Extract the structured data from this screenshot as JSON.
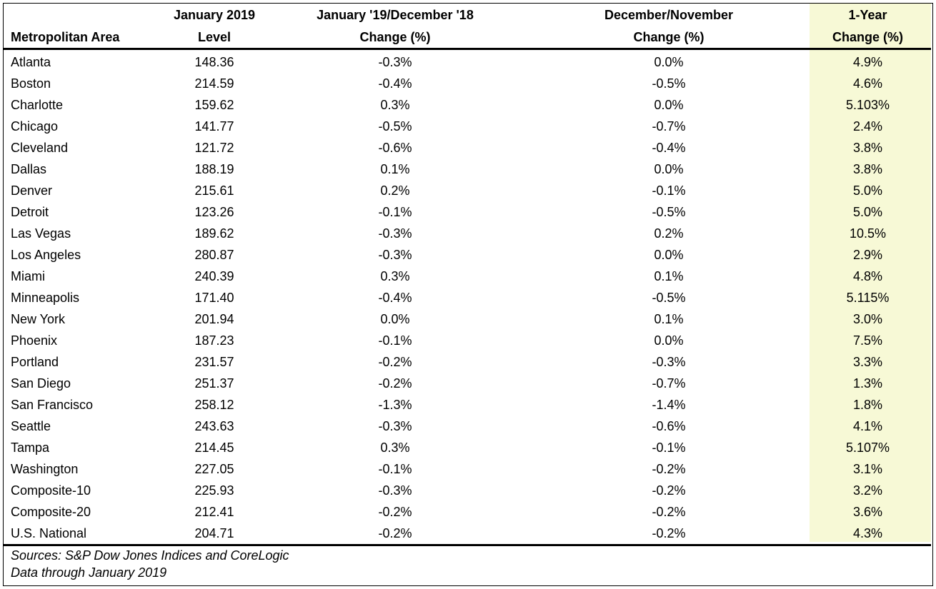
{
  "header": {
    "row1": [
      "",
      "January 2019",
      "January '19/December '18",
      "December/November",
      "1-Year"
    ],
    "row2": [
      "Metropolitan Area",
      "Level",
      "Change (%)",
      "Change (%)",
      "Change (%)"
    ]
  },
  "rows": [
    [
      "Atlanta",
      "148.36",
      "-0.3%",
      "0.0%",
      "4.9%"
    ],
    [
      "Boston",
      "214.59",
      "-0.4%",
      "-0.5%",
      "4.6%"
    ],
    [
      "Charlotte",
      "159.62",
      "0.3%",
      "0.0%",
      "5.103%"
    ],
    [
      "Chicago",
      "141.77",
      "-0.5%",
      "-0.7%",
      "2.4%"
    ],
    [
      "Cleveland",
      "121.72",
      "-0.6%",
      "-0.4%",
      "3.8%"
    ],
    [
      "Dallas",
      "188.19",
      "0.1%",
      "0.0%",
      "3.8%"
    ],
    [
      "Denver",
      "215.61",
      "0.2%",
      "-0.1%",
      "5.0%"
    ],
    [
      "Detroit",
      "123.26",
      "-0.1%",
      "-0.5%",
      "5.0%"
    ],
    [
      "Las Vegas",
      "189.62",
      "-0.3%",
      "0.2%",
      "10.5%"
    ],
    [
      "Los Angeles",
      "280.87",
      "-0.3%",
      "0.0%",
      "2.9%"
    ],
    [
      "Miami",
      "240.39",
      "0.3%",
      "0.1%",
      "4.8%"
    ],
    [
      "Minneapolis",
      "171.40",
      "-0.4%",
      "-0.5%",
      "5.115%"
    ],
    [
      "New York",
      "201.94",
      "0.0%",
      "0.1%",
      "3.0%"
    ],
    [
      "Phoenix",
      "187.23",
      "-0.1%",
      "0.0%",
      "7.5%"
    ],
    [
      "Portland",
      "231.57",
      "-0.2%",
      "-0.3%",
      "3.3%"
    ],
    [
      "San Diego",
      "251.37",
      "-0.2%",
      "-0.7%",
      "1.3%"
    ],
    [
      "San Francisco",
      "258.12",
      "-1.3%",
      "-1.4%",
      "1.8%"
    ],
    [
      "Seattle",
      "243.63",
      "-0.3%",
      "-0.6%",
      "4.1%"
    ],
    [
      "Tampa",
      "214.45",
      "0.3%",
      "-0.1%",
      "5.107%"
    ],
    [
      "Washington",
      "227.05",
      "-0.1%",
      "-0.2%",
      "3.1%"
    ],
    [
      "Composite-10",
      "225.93",
      "-0.3%",
      "-0.2%",
      "3.2%"
    ],
    [
      "Composite-20",
      "212.41",
      "-0.2%",
      "-0.2%",
      "3.6%"
    ],
    [
      "U.S. National",
      "204.71",
      "-0.2%",
      "-0.2%",
      "4.3%"
    ]
  ],
  "footer": {
    "sources": "Sources: S&P Dow Jones Indices and CoreLogic",
    "data_through": "Data through January 2019"
  },
  "colors": {
    "highlight_column": "#f7f9d6",
    "border": "#000000"
  }
}
